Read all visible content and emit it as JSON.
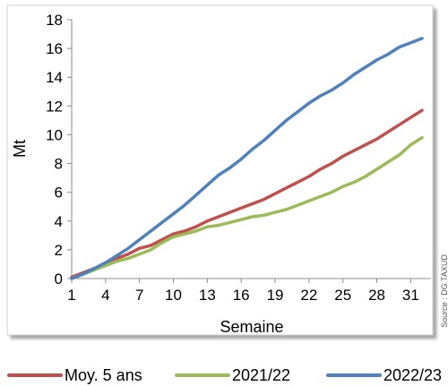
{
  "chart_data": {
    "type": "line",
    "xlabel": "Semaine",
    "ylabel": "Mt",
    "xlim": [
      1,
      32
    ],
    "ylim": [
      0,
      18
    ],
    "yticks": [
      0,
      2,
      4,
      6,
      8,
      10,
      12,
      14,
      16,
      18
    ],
    "xticks": [
      1,
      4,
      7,
      10,
      13,
      16,
      19,
      22,
      25,
      28,
      31
    ],
    "grid": false,
    "legend": "bottom",
    "series": [
      {
        "name": "Moy. 5 ans",
        "color": "#C0504D",
        "x": [
          1,
          2,
          3,
          4,
          5,
          6,
          7,
          8,
          9,
          10,
          11,
          12,
          13,
          14,
          15,
          16,
          17,
          18,
          19,
          20,
          21,
          22,
          23,
          24,
          25,
          26,
          27,
          28,
          29,
          30,
          31,
          32
        ],
        "values": [
          0.1,
          0.4,
          0.7,
          1.0,
          1.4,
          1.7,
          2.1,
          2.3,
          2.7,
          3.1,
          3.3,
          3.6,
          4.0,
          4.3,
          4.6,
          4.9,
          5.2,
          5.5,
          5.9,
          6.3,
          6.7,
          7.1,
          7.6,
          8.0,
          8.5,
          8.9,
          9.3,
          9.7,
          10.2,
          10.7,
          11.2,
          11.7
        ]
      },
      {
        "name": "2021/22",
        "color": "#9BBB59",
        "x": [
          1,
          2,
          3,
          4,
          5,
          6,
          7,
          8,
          9,
          10,
          11,
          12,
          13,
          14,
          15,
          16,
          17,
          18,
          19,
          20,
          21,
          22,
          23,
          24,
          25,
          26,
          27,
          28,
          29,
          30,
          31,
          32
        ],
        "values": [
          0.0,
          0.3,
          0.6,
          0.9,
          1.2,
          1.4,
          1.7,
          2.0,
          2.5,
          2.9,
          3.1,
          3.3,
          3.6,
          3.7,
          3.9,
          4.1,
          4.3,
          4.4,
          4.6,
          4.8,
          5.1,
          5.4,
          5.7,
          6.0,
          6.4,
          6.7,
          7.1,
          7.6,
          8.1,
          8.6,
          9.3,
          9.8
        ]
      },
      {
        "name": "2022/23",
        "color": "#4F81BD",
        "x": [
          1,
          2,
          3,
          4,
          5,
          6,
          7,
          8,
          9,
          10,
          11,
          12,
          13,
          14,
          15,
          16,
          17,
          18,
          19,
          20,
          21,
          22,
          23,
          24,
          25,
          26,
          27,
          28,
          29,
          30,
          31,
          32
        ],
        "values": [
          0.0,
          0.3,
          0.7,
          1.1,
          1.6,
          2.1,
          2.7,
          3.3,
          3.9,
          4.5,
          5.1,
          5.8,
          6.5,
          7.2,
          7.7,
          8.3,
          9.0,
          9.6,
          10.3,
          11.0,
          11.6,
          12.2,
          12.7,
          13.1,
          13.6,
          14.2,
          14.7,
          15.2,
          15.6,
          16.1,
          16.4,
          16.7
        ]
      }
    ]
  },
  "source": {
    "label": "Source : DG TAXUD"
  }
}
